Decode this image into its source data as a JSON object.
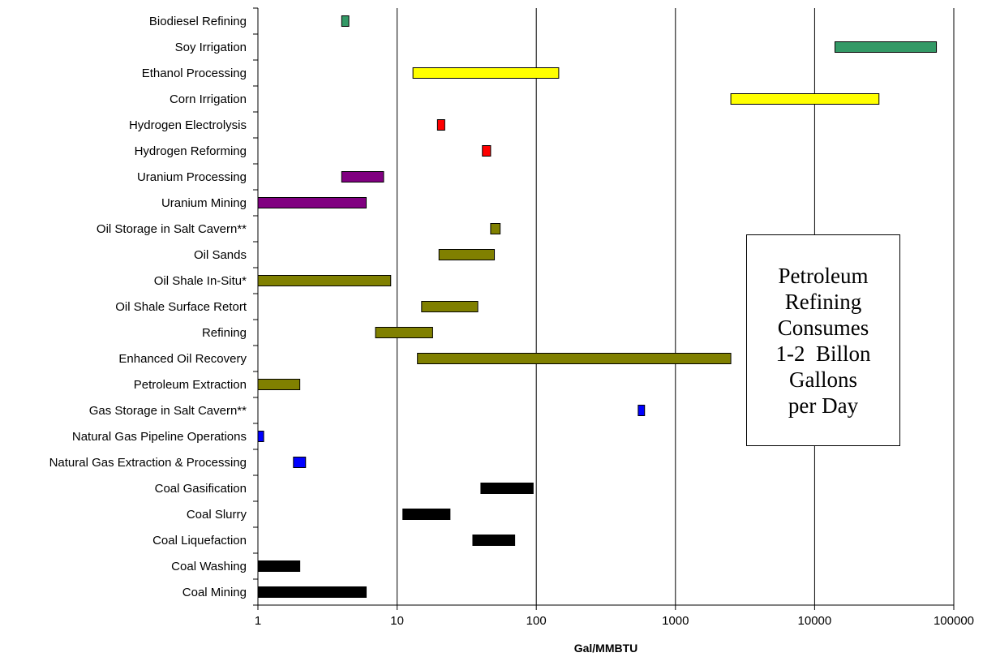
{
  "chart_data": {
    "type": "bar",
    "orientation": "horizontal-range",
    "xlabel": "Gal/MMBTU",
    "x_scale": "log",
    "xlim": [
      1,
      100000
    ],
    "x_ticks": [
      "1",
      "10",
      "100",
      "1000",
      "10000",
      "100000"
    ],
    "grid": "vertical major gridlines",
    "categories": [
      {
        "label": "Biodiesel Refining",
        "min": 4,
        "max": 4.5,
        "color": "#339966"
      },
      {
        "label": "Soy Irrigation",
        "min": 14000,
        "max": 75000,
        "color": "#339966"
      },
      {
        "label": "Ethanol Processing",
        "min": 13,
        "max": 145,
        "color": "#FFFF00"
      },
      {
        "label": "Corn Irrigation",
        "min": 2500,
        "max": 29000,
        "color": "#FFFF00"
      },
      {
        "label": "Hydrogen Electrolysis",
        "min": 19.5,
        "max": 22,
        "color": "#FF0000"
      },
      {
        "label": "Hydrogen Reforming",
        "min": 41,
        "max": 47,
        "color": "#FF0000"
      },
      {
        "label": "Uranium Processing",
        "min": 4,
        "max": 8,
        "color": "#800080"
      },
      {
        "label": "Uranium Mining",
        "min": 1,
        "max": 6,
        "color": "#800080"
      },
      {
        "label": "Oil Storage in Salt Cavern**",
        "min": 47,
        "max": 55,
        "color": "#808000"
      },
      {
        "label": "Oil Sands",
        "min": 20,
        "max": 50,
        "color": "#808000"
      },
      {
        "label": "Oil Shale In-Situ*",
        "min": 1,
        "max": 9,
        "color": "#808000"
      },
      {
        "label": "Oil Shale Surface Retort",
        "min": 15,
        "max": 38,
        "color": "#808000"
      },
      {
        "label": "Refining",
        "min": 7,
        "max": 18,
        "color": "#808000"
      },
      {
        "label": "Enhanced Oil Recovery",
        "min": 14,
        "max": 2500,
        "color": "#808000"
      },
      {
        "label": "Petroleum Extraction",
        "min": 1,
        "max": 2,
        "color": "#808000"
      },
      {
        "label": "Gas Storage in Salt Cavern**",
        "min": 540,
        "max": 600,
        "color": "#0000FF"
      },
      {
        "label": "Natural Gas Pipeline Operations",
        "min": 1,
        "max": 1.1,
        "color": "#0000FF"
      },
      {
        "label": "Natural Gas Extraction & Processing",
        "min": 1.8,
        "max": 2.2,
        "color": "#0000FF"
      },
      {
        "label": "Coal Gasification",
        "min": 40,
        "max": 95,
        "color": "#000000"
      },
      {
        "label": "Coal Slurry",
        "min": 11,
        "max": 24,
        "color": "#000000"
      },
      {
        "label": "Coal Liquefaction",
        "min": 35,
        "max": 70,
        "color": "#000000"
      },
      {
        "label": "Coal Washing",
        "min": 1,
        "max": 2,
        "color": "#000000"
      },
      {
        "label": "Coal Mining",
        "min": 1,
        "max": 6,
        "color": "#000000"
      }
    ],
    "annotation": [
      "Petroleum",
      "Refining",
      "Consumes",
      "1-2  Billon",
      "Gallons",
      "per Day"
    ]
  }
}
